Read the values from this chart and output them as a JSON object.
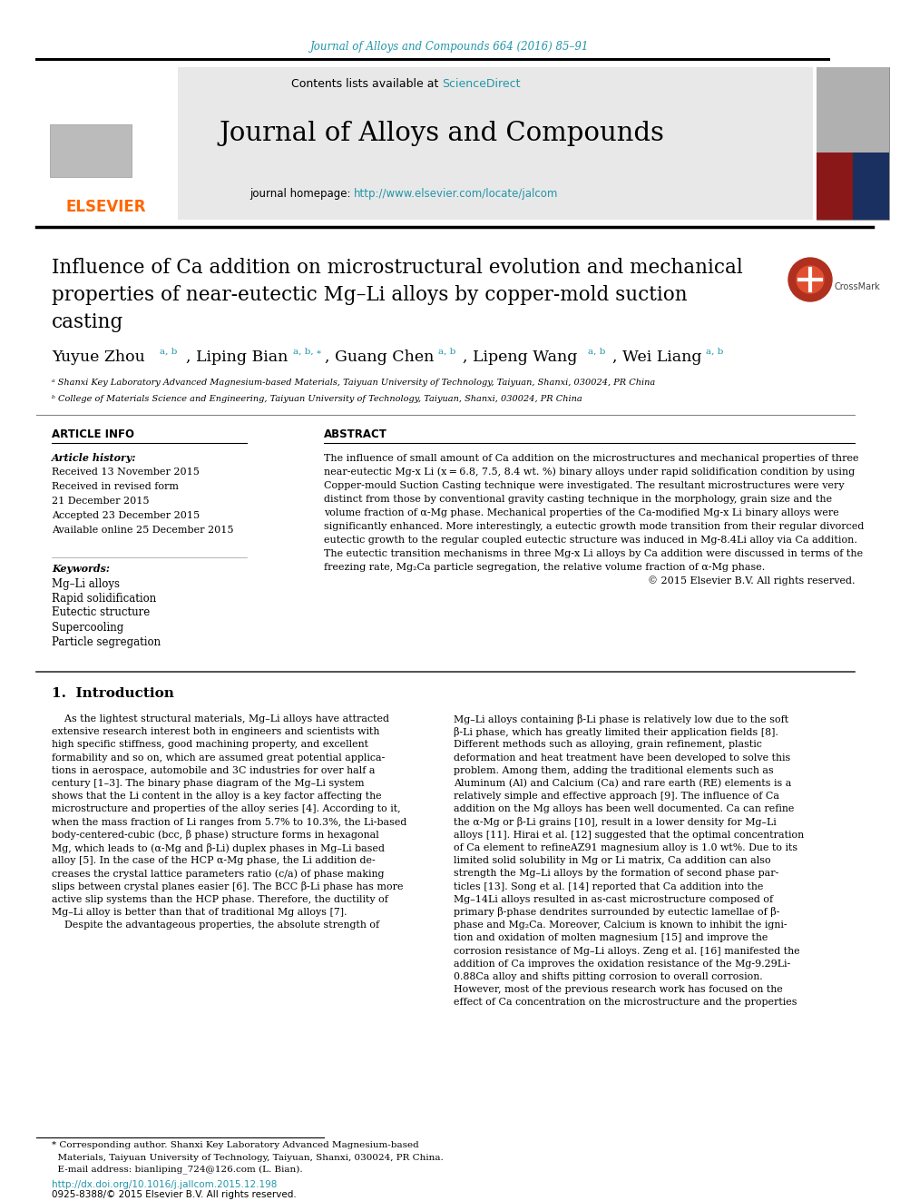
{
  "page_bg": "#ffffff",
  "top_journal_ref": "Journal of Alloys and Compounds 664 (2016) 85–91",
  "top_journal_ref_color": "#2196a8",
  "journal_name": "Journal of Alloys and Compounds",
  "contents_text": "Contents lists available at ",
  "sciencedirect_text": "ScienceDirect",
  "sciencedirect_color": "#2196a8",
  "journal_homepage_text": "journal homepage: ",
  "journal_url": "http://www.elsevier.com/locate/jalcom",
  "journal_url_color": "#2196a8",
  "header_bg": "#e8e8e8",
  "article_title_line1": "Influence of Ca addition on microstructural evolution and mechanical",
  "article_title_line2": "properties of near-eutectic Mg–Li alloys by copper-mold suction",
  "article_title_line3": "casting",
  "affiliation_a": "ᵃ Shanxi Key Laboratory Advanced Magnesium-based Materials, Taiyuan University of Technology, Taiyuan, Shanxi, 030024, PR China",
  "affiliation_b": "ᵇ College of Materials Science and Engineering, Taiyuan University of Technology, Taiyuan, Shanxi, 030024, PR China",
  "article_info_header": "ARTICLE INFO",
  "abstract_header": "ABSTRACT",
  "article_history_label": "Article history:",
  "received": "Received 13 November 2015",
  "received_revised": "Received in revised form",
  "revised_date": "21 December 2015",
  "accepted": "Accepted 23 December 2015",
  "available": "Available online 25 December 2015",
  "keywords_label": "Keywords:",
  "keywords": [
    "Mg–Li alloys",
    "Rapid solidification",
    "Eutectic structure",
    "Supercooling",
    "Particle segregation"
  ],
  "abstract_lines": [
    "The influence of small amount of Ca addition on the microstructures and mechanical properties of three",
    "near-eutectic Mg-x Li (x = 6.8, 7.5, 8.4 wt. %) binary alloys under rapid solidification condition by using",
    "Copper-mould Suction Casting technique were investigated. The resultant microstructures were very",
    "distinct from those by conventional gravity casting technique in the morphology, grain size and the",
    "volume fraction of α-Mg phase. Mechanical properties of the Ca-modified Mg-x Li binary alloys were",
    "significantly enhanced. More interestingly, a eutectic growth mode transition from their regular divorced",
    "eutectic growth to the regular coupled eutectic structure was induced in Mg-8.4Li alloy via Ca addition.",
    "The eutectic transition mechanisms in three Mg-x Li alloys by Ca addition were discussed in terms of the",
    "freezing rate, Mg₂Ca particle segregation, the relative volume fraction of α-Mg phase.",
    "© 2015 Elsevier B.V. All rights reserved."
  ],
  "intro_header": "1.  Introduction",
  "intro_left_lines": [
    "    As the lightest structural materials, Mg–Li alloys have attracted",
    "extensive research interest both in engineers and scientists with",
    "high specific stiffness, good machining property, and excellent",
    "formability and so on, which are assumed great potential applica-",
    "tions in aerospace, automobile and 3C industries for over half a",
    "century [1–3]. The binary phase diagram of the Mg–Li system",
    "shows that the Li content in the alloy is a key factor affecting the",
    "microstructure and properties of the alloy series [4]. According to it,",
    "when the mass fraction of Li ranges from 5.7% to 10.3%, the Li-based",
    "body-centered-cubic (bcc, β phase) structure forms in hexagonal",
    "Mg, which leads to (α-Mg and β-Li) duplex phases in Mg–Li based",
    "alloy [5]. In the case of the HCP α-Mg phase, the Li addition de-",
    "creases the crystal lattice parameters ratio (c/a) of phase making",
    "slips between crystal planes easier [6]. The BCC β-Li phase has more",
    "active slip systems than the HCP phase. Therefore, the ductility of",
    "Mg–Li alloy is better than that of traditional Mg alloys [7].",
    "    Despite the advantageous properties, the absolute strength of"
  ],
  "intro_right_lines": [
    "Mg–Li alloys containing β-Li phase is relatively low due to the soft",
    "β-Li phase, which has greatly limited their application fields [8].",
    "Different methods such as alloying, grain refinement, plastic",
    "deformation and heat treatment have been developed to solve this",
    "problem. Among them, adding the traditional elements such as",
    "Aluminum (Al) and Calcium (Ca) and rare earth (RE) elements is a",
    "relatively simple and effective approach [9]. The influence of Ca",
    "addition on the Mg alloys has been well documented. Ca can refine",
    "the α-Mg or β-Li grains [10], result in a lower density for Mg–Li",
    "alloys [11]. Hirai et al. [12] suggested that the optimal concentration",
    "of Ca element to refineAZ91 magnesium alloy is 1.0 wt%. Due to its",
    "limited solid solubility in Mg or Li matrix, Ca addition can also",
    "strength the Mg–Li alloys by the formation of second phase par-",
    "ticles [13]. Song et al. [14] reported that Ca addition into the",
    "Mg–14Li alloys resulted in as-cast microstructure composed of",
    "primary β-phase dendrites surrounded by eutectic lamellae of β-",
    "phase and Mg₂Ca. Moreover, Calcium is known to inhibit the igni-",
    "tion and oxidation of molten magnesium [15] and improve the",
    "corrosion resistance of Mg–Li alloys. Zeng et al. [16] manifested the",
    "addition of Ca improves the oxidation resistance of the Mg-9.29Li-",
    "0.88Ca alloy and shifts pitting corrosion to overall corrosion.",
    "However, most of the previous research work has focused on the",
    "effect of Ca concentration on the microstructure and the properties"
  ],
  "footnote_lines": [
    "* Corresponding author. Shanxi Key Laboratory Advanced Magnesium-based",
    "  Materials, Taiyuan University of Technology, Taiyuan, Shanxi, 030024, PR China.",
    "  E-mail address: bianliping_724@126.com (L. Bian)."
  ],
  "doi_text": "http://dx.doi.org/10.1016/j.jallcom.2015.12.198",
  "issn_text": "0925-8388/© 2015 Elsevier B.V. All rights reserved.",
  "elsevier_color": "#ff6600",
  "crossmark_color": "#cc3300",
  "ref_color": "#2196a8"
}
